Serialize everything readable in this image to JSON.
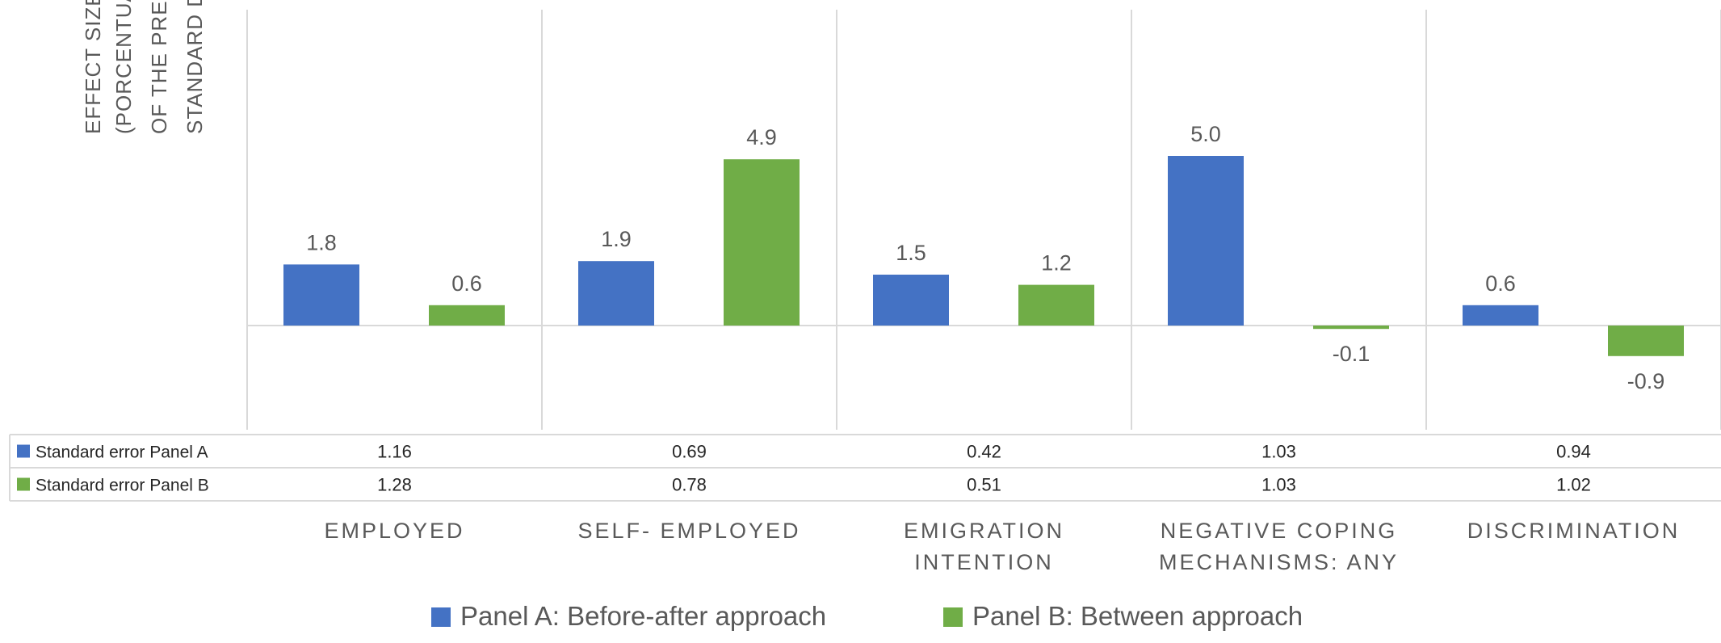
{
  "chart_data": {
    "type": "bar",
    "ylabel": [
      "EFFECT SIZE",
      "(PORCENTUAL POINTS",
      "OF THE  PRE-TREATMENT",
      "STANDARD DEVIATION)"
    ],
    "categories": [
      [
        "EMPLOYED"
      ],
      [
        "SELF- EMPLOYED"
      ],
      [
        "EMIGRATION",
        "INTENTION"
      ],
      [
        "NEGATIVE COPING",
        "MECHANISMS: ANY"
      ],
      [
        "DISCRIMINATION"
      ]
    ],
    "series": [
      {
        "name": "Panel A: Before-after approach",
        "color": "#4472C4",
        "values": [
          1.8,
          1.9,
          1.5,
          5.0,
          0.6
        ],
        "labels": [
          "1.8",
          "1.9",
          "1.5",
          "5.0",
          "0.6"
        ]
      },
      {
        "name": "Panel B: Between approach",
        "color": "#70AD47",
        "values": [
          0.6,
          4.9,
          1.2,
          -0.1,
          -0.9
        ],
        "labels": [
          "0.6",
          "4.9",
          "1.2",
          "-0.1",
          "-0.9"
        ]
      }
    ],
    "table": [
      {
        "label": "Standard error Panel A",
        "color": "#4472C4",
        "values": [
          "1.16",
          "0.69",
          "0.42",
          "1.03",
          "0.94"
        ]
      },
      {
        "label": "Standard error Panel B",
        "color": "#70AD47",
        "values": [
          "1.28",
          "0.78",
          "0.51",
          "1.03",
          "1.02"
        ]
      }
    ],
    "legend_position": "bottom",
    "grid": false
  }
}
